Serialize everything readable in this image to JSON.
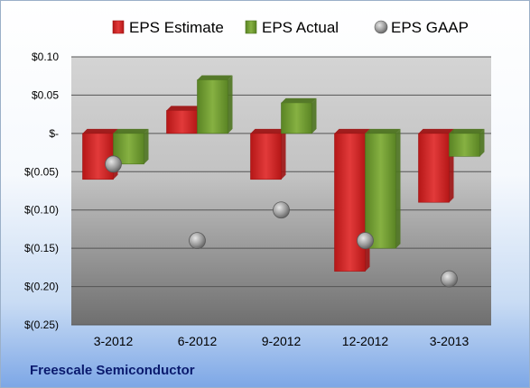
{
  "chart_data": {
    "type": "bar",
    "categories": [
      "3-2012",
      "6-2012",
      "9-2012",
      "12-2012",
      "3-2013"
    ],
    "series": [
      {
        "name": "EPS Estimate",
        "kind": "bar",
        "color": "#d62b2b",
        "values": [
          -0.06,
          0.03,
          -0.06,
          -0.18,
          -0.09
        ]
      },
      {
        "name": "EPS Actual",
        "kind": "bar",
        "color": "#6f9a2e",
        "values": [
          -0.04,
          0.07,
          0.04,
          -0.15,
          -0.03
        ]
      },
      {
        "name": "EPS GAAP",
        "kind": "marker",
        "color": "#9a9a9a",
        "values": [
          -0.04,
          -0.14,
          -0.1,
          -0.14,
          -0.19
        ]
      }
    ],
    "ylim": [
      -0.25,
      0.1
    ],
    "yticks": [
      {
        "value": 0.1,
        "label": "$0.10"
      },
      {
        "value": 0.05,
        "label": "$0.05"
      },
      {
        "value": 0.0,
        "label": "$-"
      },
      {
        "value": -0.05,
        "label": "$(0.05)"
      },
      {
        "value": -0.1,
        "label": "$(0.10)"
      },
      {
        "value": -0.15,
        "label": "$(0.15)"
      },
      {
        "value": -0.2,
        "label": "$(0.20)"
      },
      {
        "value": -0.25,
        "label": "$(0.25)"
      }
    ],
    "grid": true,
    "legend_position": "top"
  },
  "footer": {
    "company": "Freescale Semiconductor"
  }
}
